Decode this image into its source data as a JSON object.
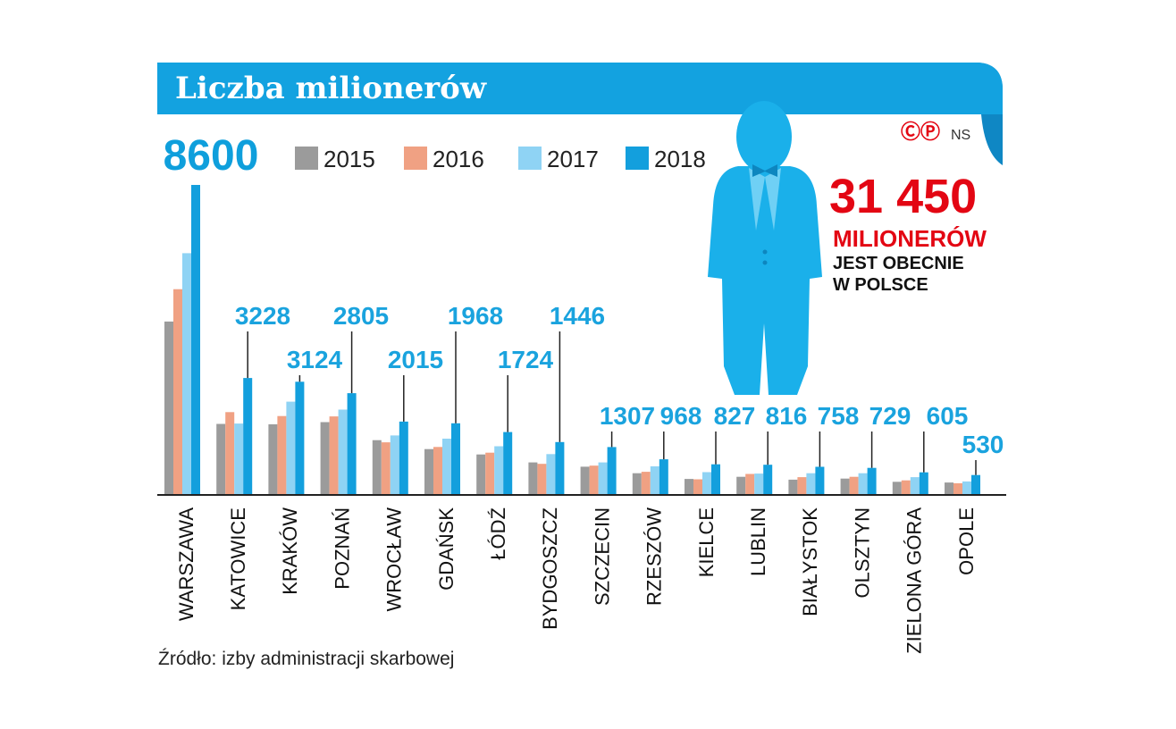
{
  "header": {
    "title": "Liczba milionerów",
    "copyright": "ⒸⓅ",
    "ns": "NS"
  },
  "colors": {
    "2015": "#9b9b9b",
    "2016": "#f0a183",
    "2017": "#8fd3f4",
    "2018": "#139fdd",
    "accent": "#e30613",
    "banner": "#13a2e0"
  },
  "chart_data": {
    "type": "bar",
    "title": "Liczba milionerów",
    "categories": [
      "Warszawa",
      "Katowice",
      "Kraków",
      "Poznań",
      "Wrocław",
      "Gdańsk",
      "Łódź",
      "Bydgoszcz",
      "Szczecin",
      "Rzeszów",
      "Kielce",
      "Lublin",
      "Białystok",
      "Olsztyn",
      "Zielona Góra",
      "Opole"
    ],
    "series": [
      {
        "name": "2015",
        "values": [
          4800,
          1950,
          1940,
          2000,
          1500,
          1250,
          1100,
          880,
          760,
          580,
          420,
          480,
          400,
          430,
          340,
          320
        ]
      },
      {
        "name": "2016",
        "values": [
          5700,
          2280,
          2170,
          2160,
          1440,
          1310,
          1150,
          840,
          790,
          620,
          410,
          560,
          470,
          480,
          380,
          300
        ]
      },
      {
        "name": "2017",
        "values": [
          6700,
          1960,
          2570,
          2350,
          1630,
          1540,
          1330,
          1110,
          880,
          770,
          610,
          570,
          580,
          580,
          470,
          350
        ]
      },
      {
        "name": "2018",
        "values": [
          8600,
          3228,
          3124,
          2805,
          2015,
          1968,
          1724,
          1446,
          1307,
          968,
          827,
          816,
          758,
          729,
          605,
          530
        ]
      }
    ],
    "labeled_values": [
      "8600",
      "3228",
      "3124",
      "2805",
      "2015",
      "1968",
      "1724",
      "1446",
      "1307",
      "968",
      "827",
      "816",
      "758",
      "729",
      "605",
      "530"
    ],
    "ylim": [
      0,
      8600
    ],
    "legend": [
      "2015",
      "2016",
      "2017",
      "2018"
    ],
    "legend_position": "top"
  },
  "callout": {
    "number": "31 450",
    "unit": "MILIONERÓW",
    "line1": "JEST OBECNIE",
    "line2": "W POLSCE"
  },
  "source": "Źródło: izby administracji skarbowej"
}
